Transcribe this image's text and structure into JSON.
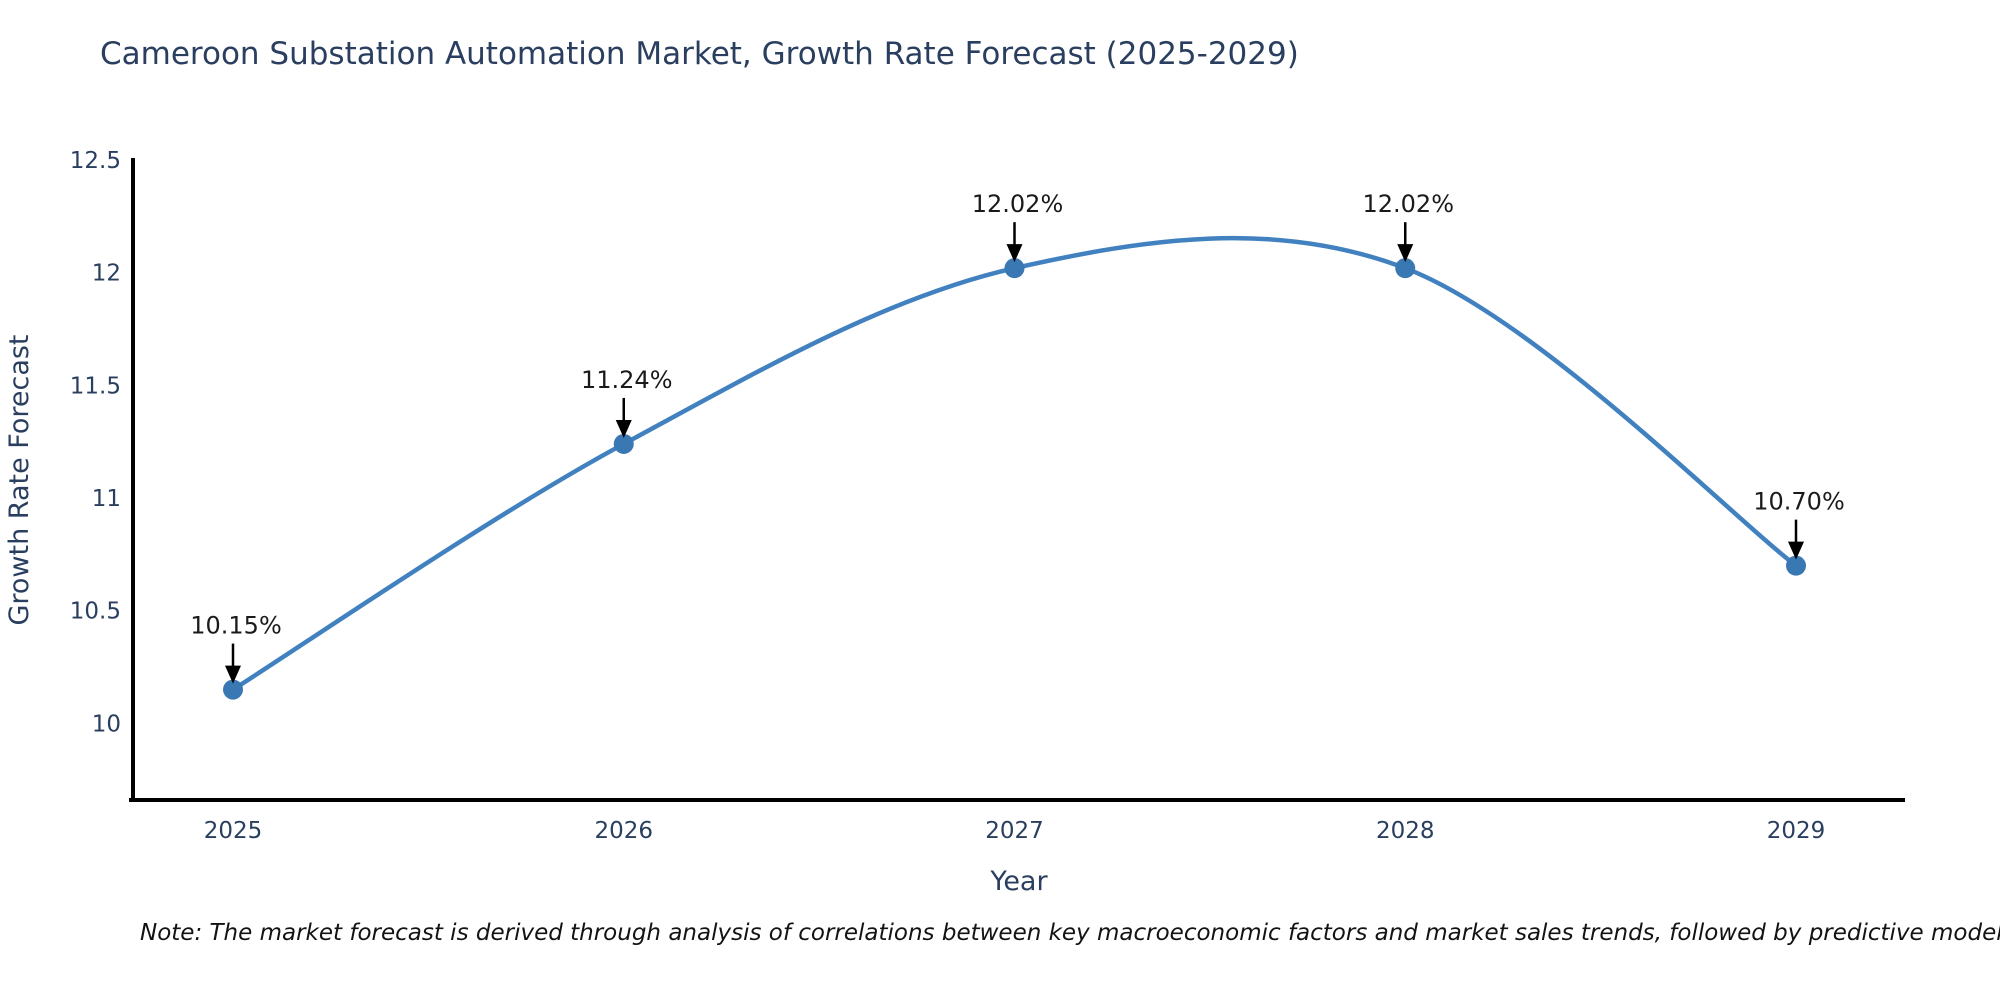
{
  "chart": {
    "title": "Cameroon Substation Automation Market, Growth Rate Forecast (2025-2029)",
    "xlabel": "Year",
    "ylabel": "Growth Rate Forecast",
    "note": "Note: The market forecast is derived through analysis of correlations between key macroeconomic factors and market sales trends, followed by predictive modeling to project future sal"
  },
  "chart_data": {
    "type": "line",
    "title": "Cameroon Substation Automation Market, Growth Rate Forecast (2025-2029)",
    "xlabel": "Year",
    "ylabel": "Growth Rate Forecast",
    "categories": [
      "2025",
      "2026",
      "2027",
      "2028",
      "2029"
    ],
    "values": [
      10.15,
      11.24,
      12.02,
      12.02,
      10.7
    ],
    "annotations": [
      "10.15%",
      "11.24%",
      "12.02%",
      "12.02%",
      "10.70%"
    ],
    "y_ticks": [
      10,
      10.5,
      11,
      11.5,
      12,
      12.5
    ],
    "ylim": [
      9.66,
      12.5
    ],
    "line_shape": "spline",
    "grid": false,
    "legend_position": "none",
    "marker": "circle",
    "annotation_arrow": "down-arrow",
    "colors": {
      "line": "#4181c0",
      "marker": "#3a78b4",
      "axis": "#000000",
      "axis_text": "#2a3f5f",
      "annotation_text": "#1a1a1a"
    }
  }
}
